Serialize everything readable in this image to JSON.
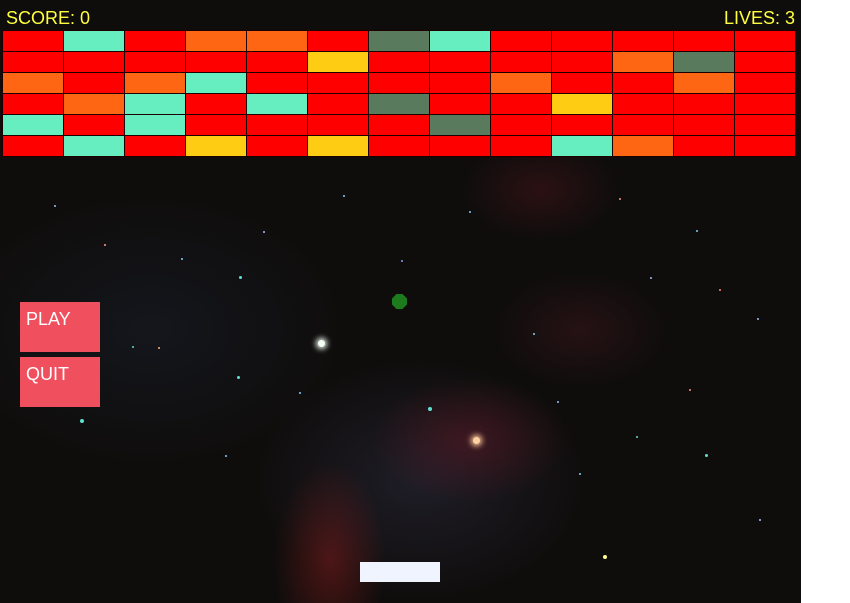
{
  "hud": {
    "score_label": "SCORE: 0",
    "lives_label": "LIVES: 3"
  },
  "menu": {
    "play_label": "PLAY",
    "quit_label": "QUIT"
  },
  "colors": {
    "R": "#ff0000",
    "T": "#66eec0",
    "O": "#ff6614",
    "G": "#5a7a5e",
    "Y": "#ffcc14"
  },
  "bricks": [
    "RTROORGTRRRRR",
    "RRRRRYRRRROGR",
    "OROTRRRRORROR",
    "ROTRTRGRRYRRR",
    "TRTRRRRGRRRRR",
    "RTRYRYRRRTORR"
  ]
}
